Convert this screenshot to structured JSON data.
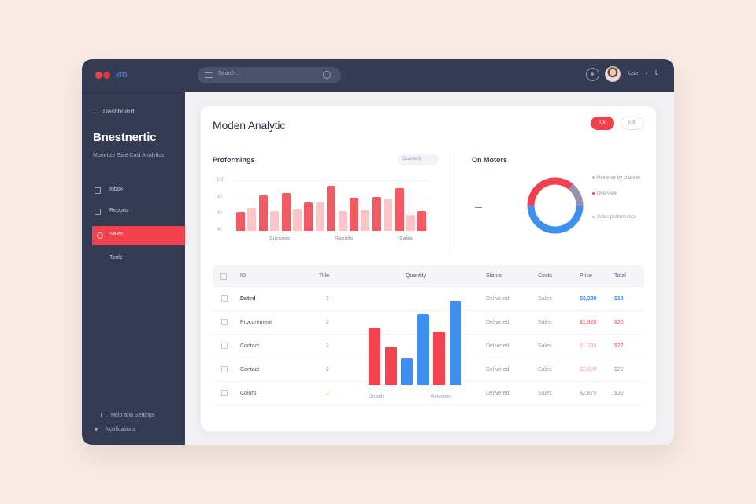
{
  "app": {
    "logo_text": "kro",
    "search_placeholder": "Search...",
    "username": "User",
    "user_caret": "ı",
    "topbar_extra": "L",
    "colors": {
      "accent": "#f2404d",
      "blue": "#3d8ff0",
      "navy": "#343b53",
      "pink": "#fbc4c6"
    }
  },
  "sidebar": {
    "section_label": "Dashboard",
    "title": "Bnestnertic",
    "subtitle": "Monetize Sale Cost Analytics",
    "items": [
      {
        "label": "Inbox",
        "icon": "inbox-icon"
      },
      {
        "label": "Reports",
        "icon": "document-icon"
      },
      {
        "label": "Sales",
        "icon": "chart-icon",
        "active": true
      },
      {
        "label": "Tools",
        "icon": "tools-icon"
      }
    ],
    "footer": [
      {
        "label": "Help and Settings",
        "icon": "help-icon"
      },
      {
        "label": "Notifications",
        "icon": "bell-icon"
      }
    ]
  },
  "main": {
    "title": "Moden Analytic",
    "primary_button": "Add",
    "secondary_button": "Edit",
    "bar_panel": {
      "title": "Proformings",
      "filter": "Quarterly",
      "yticks": [
        "100",
        "80",
        "60",
        "40"
      ]
    },
    "donut_panel": {
      "title": "On Motors",
      "legend": [
        "Revenue by channel",
        "Overview",
        "Sales performance"
      ]
    },
    "table": {
      "headers": [
        "ID",
        "Title",
        "Quantity",
        "Status",
        "Costs",
        "Price",
        "Total"
      ],
      "rows": [
        {
          "name": "Dated",
          "qty": "1",
          "status": "Delivered",
          "cost": "Sales",
          "price": "$3,330",
          "total": "$10"
        },
        {
          "name": "Procurement",
          "qty": "2",
          "status": "Delivered",
          "cost": "Sales",
          "price": "$1,920",
          "total": "$20"
        },
        {
          "name": "Contact",
          "qty": "2",
          "status": "Delivered",
          "cost": "Sales",
          "price": "$1,330",
          "total": "$22"
        },
        {
          "name": "Contact",
          "qty": "2",
          "status": "Delivered",
          "cost": "Sales",
          "price": "$2,020",
          "total": "$20"
        },
        {
          "name": "Colors",
          "qty": "3",
          "status": "Delivered",
          "cost": "Sales",
          "price": "$2,870",
          "total": "$30"
        }
      ]
    }
  },
  "chart_data": [
    {
      "type": "bar",
      "categories": [
        "1",
        "2",
        "3",
        "4",
        "5",
        "6",
        "7",
        "8",
        "9",
        "10",
        "11",
        "12",
        "13",
        "14",
        "15",
        "16",
        "17"
      ],
      "series": [
        {
          "values": [
            40,
            48,
            75,
            42,
            80,
            45,
            60,
            62,
            95,
            42,
            70,
            44,
            72,
            66,
            90,
            34,
            42
          ]
        }
      ],
      "ylim": [
        0,
        100
      ],
      "xtick_labels": [
        "Success",
        "Results",
        "Sales"
      ],
      "grid": true
    },
    {
      "type": "pie",
      "values": [
        50,
        36,
        14
      ],
      "colors": [
        "#3d8ff0",
        "#f2404d",
        "#9a8fb2"
      ],
      "donut": true
    },
    {
      "type": "bar",
      "categories": [
        "1",
        "2",
        "3",
        "4",
        "5",
        "6"
      ],
      "values": [
        72,
        48,
        33,
        88,
        67,
        105
      ],
      "colors": [
        "#f2434f",
        "#f2434f",
        "#3d8ff0",
        "#3d8ff0",
        "#f2434f",
        "#3d8ff0"
      ],
      "ylim": [
        0,
        110
      ],
      "xtick_labels": [
        "Growth",
        "Retention"
      ]
    }
  ]
}
